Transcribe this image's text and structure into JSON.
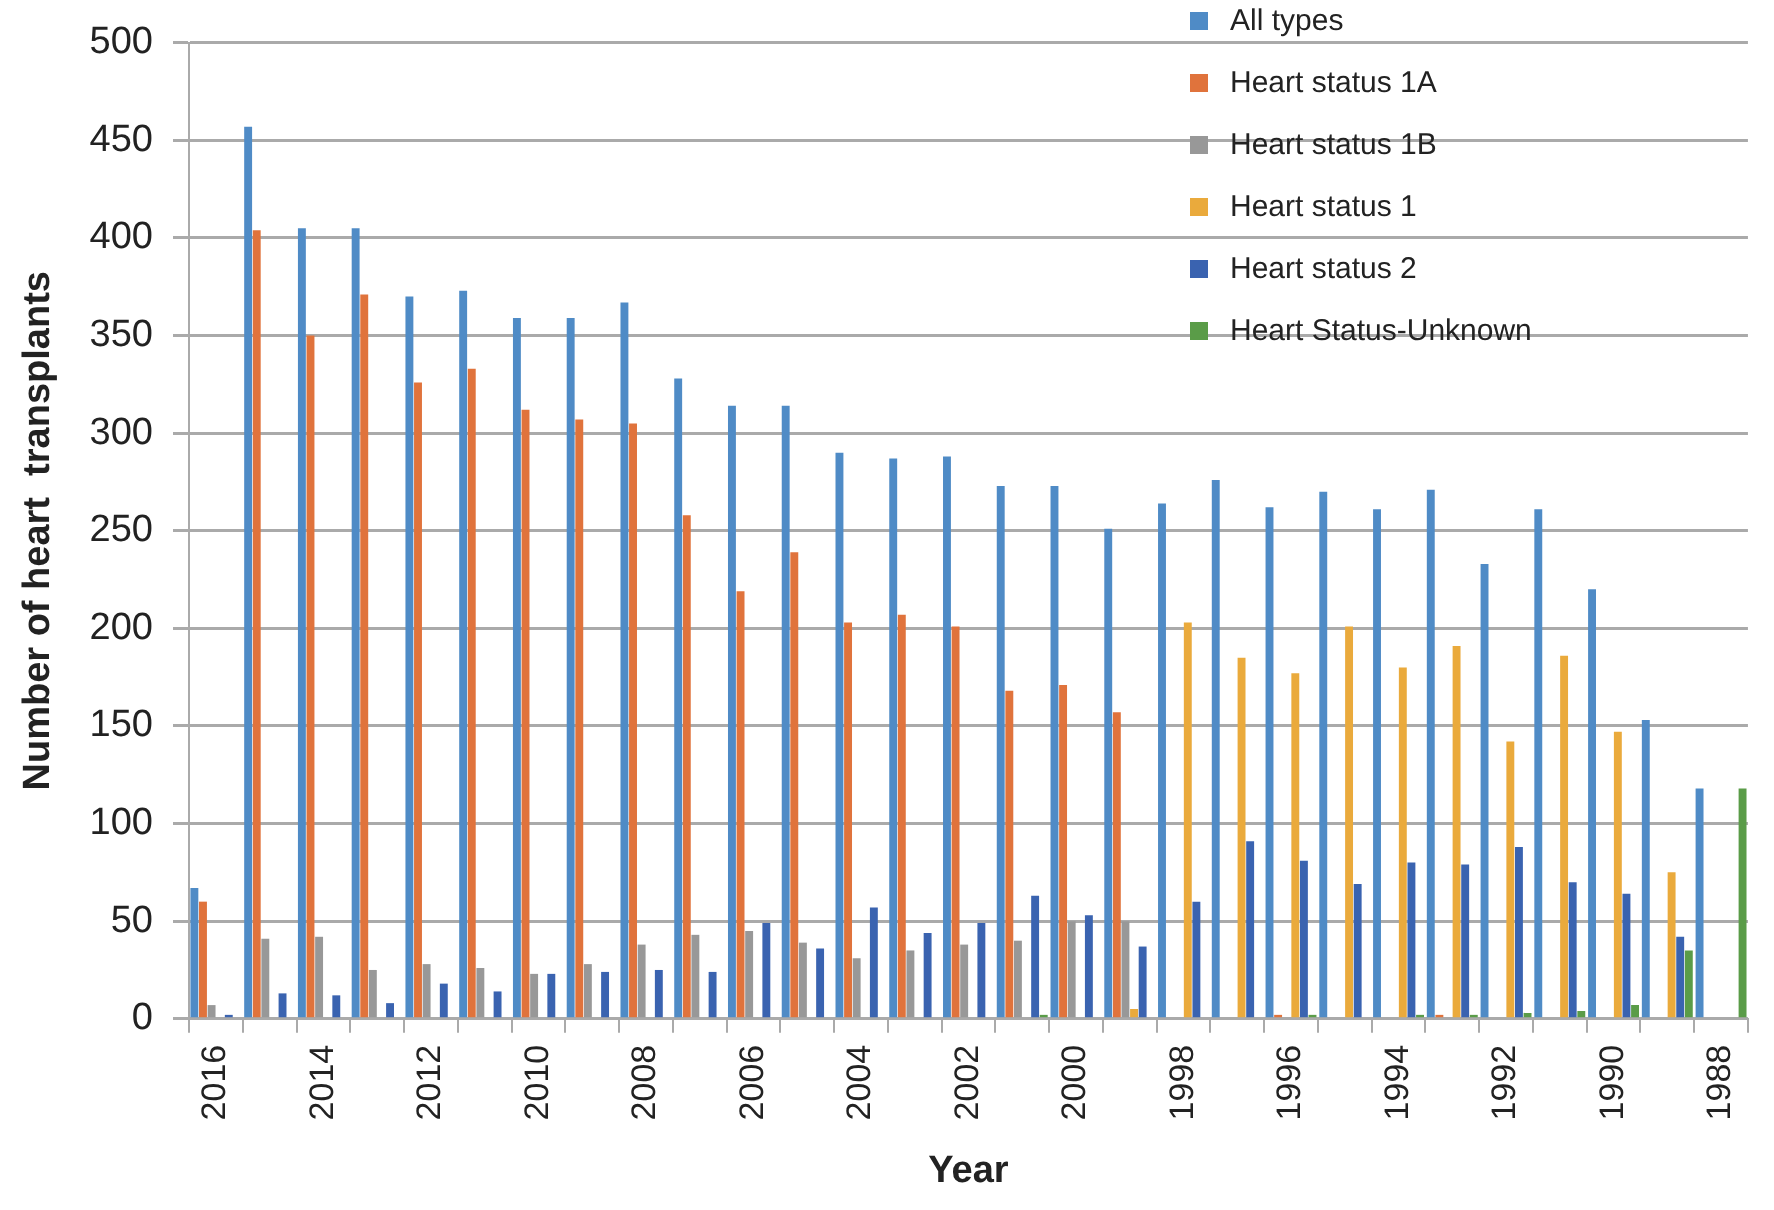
{
  "chart_data": {
    "type": "bar",
    "xlabel": "Year",
    "ylabel": "Number of heart  transplants",
    "categories": [
      "2016",
      null,
      "2014",
      null,
      "2012",
      null,
      "2010",
      null,
      "2008",
      null,
      "2006",
      null,
      "2004",
      null,
      "2002",
      null,
      "2000",
      null,
      "1998",
      null,
      "1996",
      null,
      "1994",
      null,
      "1992",
      null,
      "1990",
      null,
      "1988"
    ],
    "series": [
      {
        "name": "All types",
        "color": "#4f8bc6",
        "values": [
          67,
          457,
          405,
          405,
          370,
          373,
          359,
          359,
          367,
          328,
          314,
          314,
          290,
          287,
          288,
          273,
          273,
          251,
          264,
          276,
          262,
          270,
          261,
          271,
          233,
          261,
          220,
          153,
          118
        ]
      },
      {
        "name": "Heart status 1A",
        "color": "#e0733c",
        "values": [
          60,
          404,
          350,
          371,
          326,
          333,
          312,
          307,
          305,
          258,
          219,
          239,
          203,
          207,
          201,
          168,
          171,
          157,
          null,
          null,
          2,
          null,
          null,
          2,
          null,
          null,
          null,
          null,
          null
        ]
      },
      {
        "name": "Heart status 1B",
        "color": "#989898",
        "values": [
          7,
          41,
          42,
          25,
          28,
          26,
          23,
          28,
          38,
          43,
          45,
          39,
          31,
          35,
          38,
          40,
          50,
          50,
          null,
          null,
          null,
          null,
          null,
          null,
          null,
          null,
          null,
          null,
          null
        ]
      },
      {
        "name": "Heart status 1",
        "color": "#eaaa3c",
        "values": [
          null,
          null,
          null,
          null,
          null,
          null,
          null,
          null,
          null,
          null,
          null,
          null,
          null,
          null,
          null,
          null,
          null,
          5,
          203,
          185,
          177,
          201,
          180,
          191,
          142,
          186,
          147,
          75,
          null
        ]
      },
      {
        "name": "Heart status 2",
        "color": "#3a63b0",
        "values": [
          2,
          13,
          12,
          8,
          18,
          14,
          23,
          24,
          25,
          24,
          49,
          36,
          57,
          44,
          49,
          63,
          53,
          37,
          60,
          91,
          81,
          69,
          80,
          79,
          88,
          70,
          64,
          42,
          null
        ]
      },
      {
        "name": "Heart Status-Unknown",
        "color": "#5a9c48",
        "values": [
          null,
          null,
          null,
          null,
          null,
          null,
          null,
          null,
          null,
          null,
          null,
          null,
          null,
          null,
          null,
          2,
          null,
          null,
          null,
          null,
          2,
          null,
          2,
          2,
          3,
          4,
          7,
          35,
          118
        ]
      }
    ],
    "ylim": [
      0,
      500
    ],
    "yticks": [
      0,
      50,
      100,
      150,
      200,
      250,
      300,
      350,
      400,
      450,
      500
    ],
    "grid": "y",
    "legend": "top right"
  }
}
